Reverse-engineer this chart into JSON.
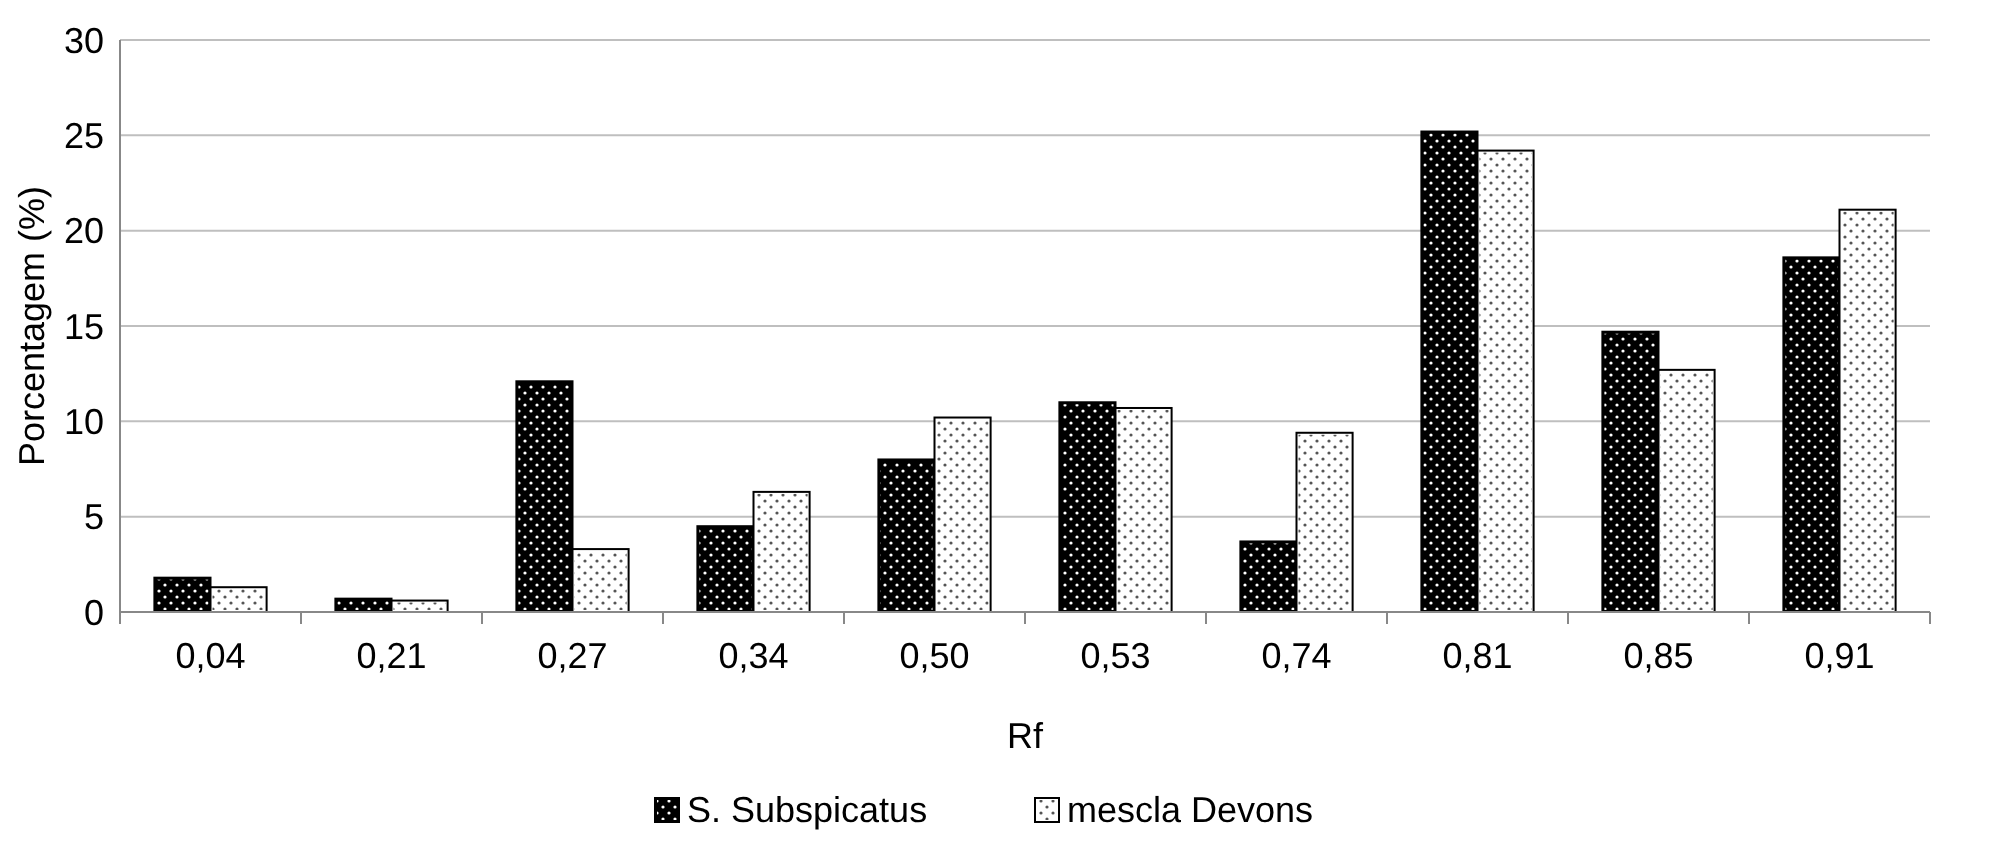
{
  "chart_data": {
    "type": "bar",
    "xlabel": "Rf",
    "ylabel": "Porcentagem (%)",
    "categories": [
      "0,04",
      "0,21",
      "0,27",
      "0,34",
      "0,50",
      "0,53",
      "0,74",
      "0,81",
      "0,85",
      "0,91"
    ],
    "series": [
      {
        "name": "S. Subspicatus",
        "color": "#000000",
        "values": [
          1.8,
          0.7,
          12.1,
          4.5,
          8.0,
          11.0,
          3.7,
          25.2,
          14.7,
          18.6
        ]
      },
      {
        "name": "mescla Devons",
        "color": "#ffffff",
        "values": [
          1.3,
          0.6,
          3.3,
          6.3,
          10.2,
          10.7,
          9.4,
          24.2,
          12.7,
          21.1
        ]
      }
    ],
    "ylim": [
      0,
      30
    ],
    "yticks": [
      0,
      5,
      10,
      15,
      20,
      25,
      30
    ],
    "grid": "y",
    "legend": "bottom"
  }
}
